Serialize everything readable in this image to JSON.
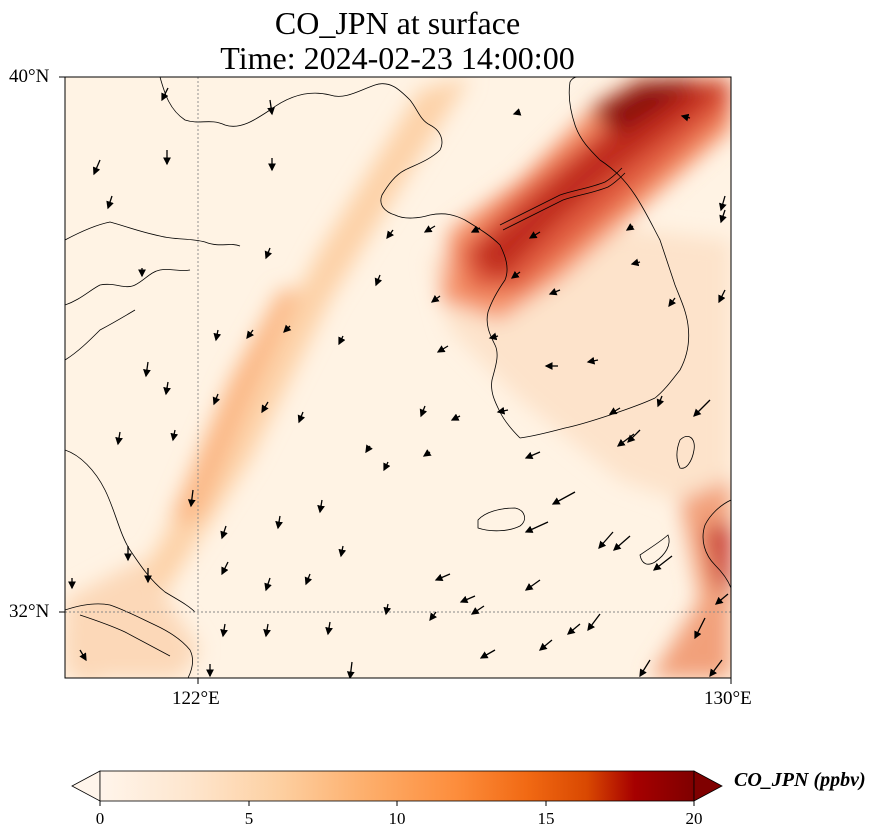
{
  "title": {
    "line1": "CO_JPN at surface",
    "line2": "Time: 2024-02-23 14:00:00"
  },
  "map": {
    "lat_ticks": [
      "40°N",
      "32°N"
    ],
    "lon_ticks": [
      "122°E",
      "130°E"
    ]
  },
  "colorbar": {
    "label": "CO_JPN (ppbv)",
    "ticks": [
      "0",
      "5",
      "10",
      "15",
      "20"
    ],
    "colors": [
      "#fff5eb",
      "#fee6ce",
      "#fdd0a2",
      "#fdae6b",
      "#fd8d3c",
      "#f16913",
      "#d94801",
      "#a60000",
      "#7f0000"
    ]
  }
}
